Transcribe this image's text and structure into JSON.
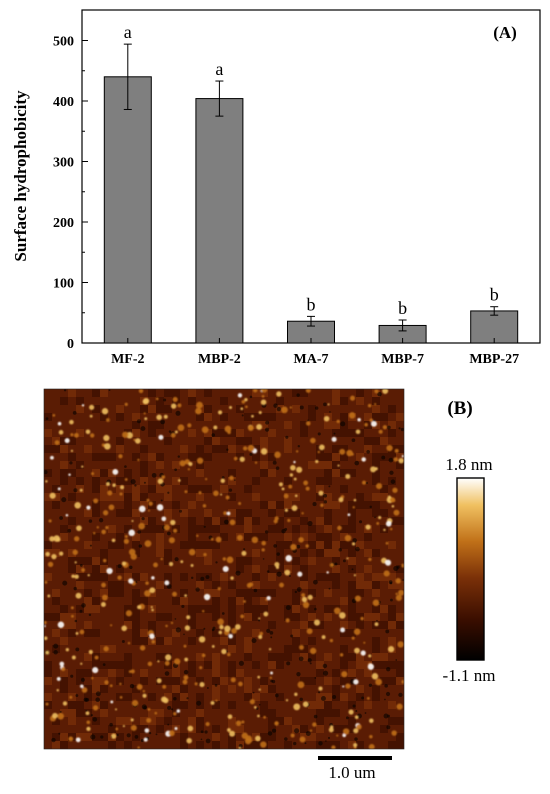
{
  "panel_a": {
    "label": "(A)",
    "chart_data": {
      "type": "bar",
      "categories": [
        "MF-2",
        "MBP-2",
        "MA-7",
        "MBP-7",
        "MBP-27"
      ],
      "values": [
        440,
        404,
        36,
        29,
        53
      ],
      "errors": [
        54,
        29,
        8,
        9,
        7
      ],
      "significance_letters": [
        "a",
        "a",
        "b",
        "b",
        "b"
      ],
      "xlabel": "",
      "ylabel": "Surface hydrophobicity",
      "ylim": [
        0,
        550
      ],
      "yticks": [
        0,
        100,
        200,
        300,
        400,
        500
      ],
      "bar_color": "#7f7f7f",
      "grid": false
    }
  },
  "panel_b": {
    "label": "(B)",
    "colorbar_max": "1.8 nm",
    "colorbar_min": "-1.1 nm",
    "scalebar_label": "1.0 um",
    "colors": [
      "#000000",
      "#3a0e00",
      "#7a3008",
      "#c07018",
      "#f0c060",
      "#ffffff"
    ]
  }
}
